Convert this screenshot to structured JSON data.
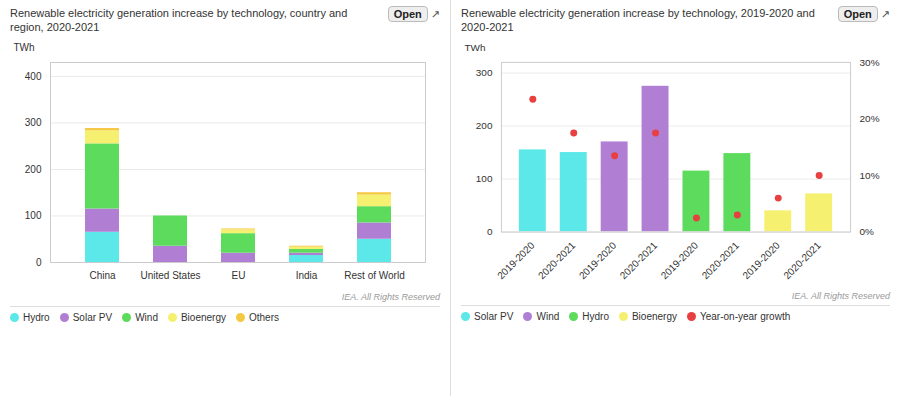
{
  "chart_data": [
    {
      "type": "bar",
      "title": "Renewable electricity generation increase by technology, country and region, 2020-2021",
      "ylabel": "TWh",
      "categories": [
        "China",
        "United States",
        "EU",
        "India",
        "Rest of World"
      ],
      "series": [
        {
          "name": "Hydro",
          "color": "#5CE8E8",
          "values": [
            65,
            0,
            0,
            15,
            50
          ]
        },
        {
          "name": "Solar PV",
          "color": "#B07FD4",
          "values": [
            50,
            35,
            20,
            5,
            35
          ]
        },
        {
          "name": "Wind",
          "color": "#5CDB5C",
          "values": [
            140,
            65,
            42,
            8,
            35
          ]
        },
        {
          "name": "Bioenergy",
          "color": "#F5F070",
          "values": [
            28,
            0,
            8,
            5,
            25
          ]
        },
        {
          "name": "Others",
          "color": "#F5C842",
          "values": [
            5,
            0,
            2,
            2,
            5
          ]
        }
      ],
      "stacked": true,
      "ylim": [
        0,
        430
      ],
      "yticks": [
        0,
        100,
        200,
        300,
        400
      ],
      "grid": true,
      "legend": "lower left",
      "annotations": [
        "Open",
        "↗",
        "IEA. All Rights Reserved"
      ]
    },
    {
      "type": "bar",
      "title": "Renewable electricity generation increase by technology, 2019-2020 and 2020-2021",
      "ylabel": "TWh",
      "categories": [
        "2019-2020",
        "2020-2021",
        "2019-2020",
        "2020-2021",
        "2019-2020",
        "2020-2021",
        "2019-2020",
        "2020-2021"
      ],
      "series": [
        {
          "name": "Solar PV",
          "color": "#5CE8E8",
          "values": [
            155,
            150,
            null,
            null,
            null,
            null,
            null,
            null
          ]
        },
        {
          "name": "Wind",
          "color": "#B07FD4",
          "values": [
            null,
            null,
            170,
            275,
            null,
            null,
            null,
            null
          ]
        },
        {
          "name": "Hydro",
          "color": "#5CDB5C",
          "values": [
            null,
            null,
            null,
            null,
            115,
            148,
            null,
            null
          ]
        },
        {
          "name": "Bioenergy",
          "color": "#F5F070",
          "values": [
            null,
            null,
            null,
            null,
            null,
            null,
            40,
            72
          ]
        },
        {
          "name": "Year-on-year growth",
          "type": "scatter",
          "marker": "circle",
          "color": "#E84040",
          "axis": "y2",
          "values": [
            23.5,
            17.5,
            13.5,
            17.5,
            2.5,
            3.0,
            6.0,
            10.0
          ]
        }
      ],
      "ylim": [
        0,
        320
      ],
      "yticks": [
        0,
        100,
        200,
        300
      ],
      "y2lim": [
        0,
        30
      ],
      "y2ticks": [
        {
          "value": 0,
          "label": "0%"
        },
        {
          "value": 10,
          "label": "10%"
        },
        {
          "value": 20,
          "label": "20%"
        },
        {
          "value": 30,
          "label": "30%"
        }
      ],
      "grid": true,
      "legend": "lower left",
      "annotations": [
        "Open",
        "↗",
        "IEA. All Rights Reserved"
      ]
    }
  ]
}
